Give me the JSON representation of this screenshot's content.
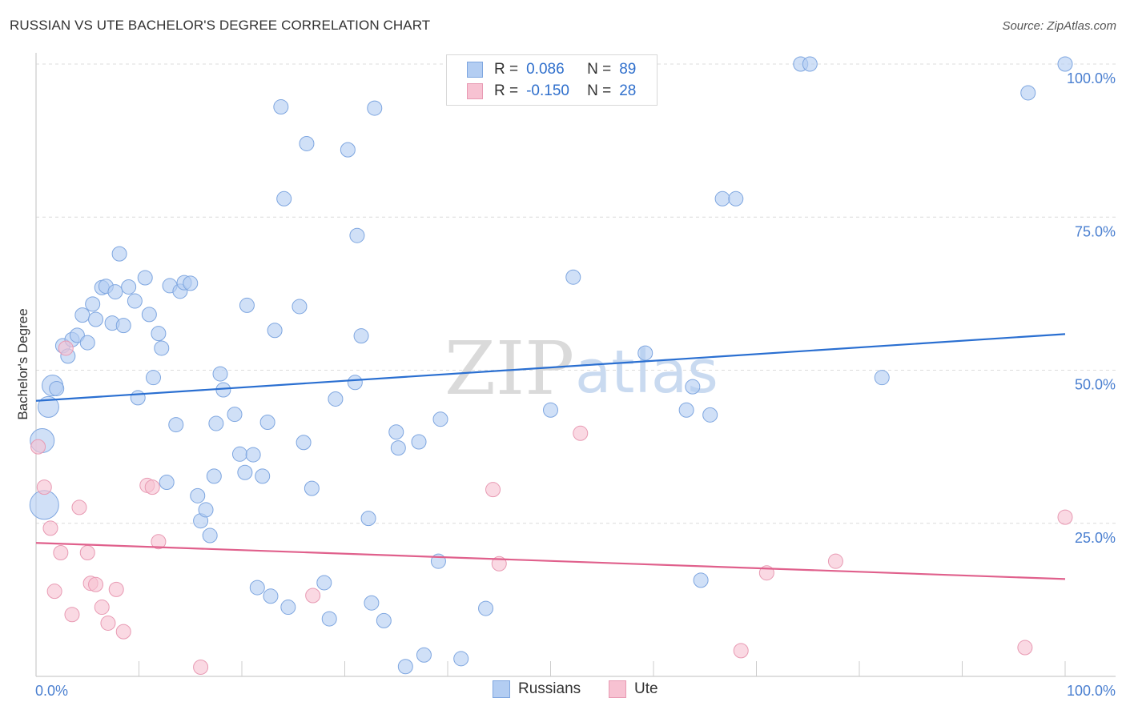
{
  "header": {
    "title": "RUSSIAN VS UTE BACHELOR'S DEGREE CORRELATION CHART",
    "source": "Source: ZipAtlas.com"
  },
  "stats": [
    {
      "r_label": "R =",
      "r_value": "0.086",
      "n_label": "N =",
      "n_value": "89",
      "color": "#b3cdf2",
      "stroke": "#7ea6e0"
    },
    {
      "r_label": "R =",
      "r_value": "-0.150",
      "n_label": "N =",
      "n_value": "28",
      "color": "#f7c2d2",
      "stroke": "#e89ab3"
    }
  ],
  "legend": [
    {
      "label": "Russians",
      "color": "#b3cdf2",
      "stroke": "#7ea6e0"
    },
    {
      "label": "Ute",
      "color": "#f7c2d2",
      "stroke": "#e89ab3"
    }
  ],
  "watermark": {
    "zip": "ZIP",
    "atlas": "atlas"
  },
  "chart_data": {
    "type": "scatter",
    "title": "RUSSIAN VS UTE BACHELOR'S DEGREE CORRELATION CHART",
    "xlabel": "",
    "ylabel": "Bachelor's Degree",
    "xlim": [
      0,
      100
    ],
    "ylim": [
      0,
      100
    ],
    "x_tick_labels": [
      "0.0%",
      "100.0%"
    ],
    "y_tick_labels": [
      "25.0%",
      "50.0%",
      "75.0%",
      "100.0%"
    ],
    "y_tick_values": [
      25,
      50,
      75,
      100
    ],
    "grid": "horizontal dashed",
    "legend_position": "bottom-center",
    "series": [
      {
        "name": "Russians",
        "color": "#7ea6e0",
        "fill": "#b3cdf2",
        "trend": {
          "x": [
            0,
            100
          ],
          "y": [
            45.0,
            55.9
          ],
          "color": "#2a6fd1"
        },
        "points": [
          {
            "x": 0.6,
            "y": 38.5,
            "s": 3
          },
          {
            "x": 0.8,
            "y": 28.0,
            "s": 4
          },
          {
            "x": 1.2,
            "y": 44.0,
            "s": 2
          },
          {
            "x": 1.6,
            "y": 47.5,
            "s": 2
          },
          {
            "x": 2.0,
            "y": 47.0,
            "s": 1
          },
          {
            "x": 2.6,
            "y": 54.0,
            "s": 1
          },
          {
            "x": 3.1,
            "y": 52.3,
            "s": 1
          },
          {
            "x": 3.5,
            "y": 55.0,
            "s": 1
          },
          {
            "x": 4.0,
            "y": 55.7,
            "s": 1
          },
          {
            "x": 4.5,
            "y": 59.0,
            "s": 1
          },
          {
            "x": 5.0,
            "y": 54.5,
            "s": 1
          },
          {
            "x": 5.5,
            "y": 60.8,
            "s": 1
          },
          {
            "x": 5.8,
            "y": 58.3,
            "s": 1
          },
          {
            "x": 6.4,
            "y": 63.5,
            "s": 1
          },
          {
            "x": 6.8,
            "y": 63.7,
            "s": 1
          },
          {
            "x": 7.4,
            "y": 57.7,
            "s": 1
          },
          {
            "x": 7.7,
            "y": 62.8,
            "s": 1
          },
          {
            "x": 8.1,
            "y": 69.0,
            "s": 1
          },
          {
            "x": 8.5,
            "y": 57.3,
            "s": 1
          },
          {
            "x": 9.0,
            "y": 63.6,
            "s": 1
          },
          {
            "x": 9.6,
            "y": 61.3,
            "s": 1
          },
          {
            "x": 9.9,
            "y": 45.5,
            "s": 1
          },
          {
            "x": 10.6,
            "y": 65.1,
            "s": 1
          },
          {
            "x": 11.0,
            "y": 59.1,
            "s": 1
          },
          {
            "x": 11.4,
            "y": 48.8,
            "s": 1
          },
          {
            "x": 11.9,
            "y": 56.0,
            "s": 1
          },
          {
            "x": 12.2,
            "y": 53.6,
            "s": 1
          },
          {
            "x": 12.7,
            "y": 31.7,
            "s": 1
          },
          {
            "x": 13.0,
            "y": 63.8,
            "s": 1
          },
          {
            "x": 13.6,
            "y": 41.1,
            "s": 1
          },
          {
            "x": 14.0,
            "y": 62.9,
            "s": 1
          },
          {
            "x": 14.4,
            "y": 64.3,
            "s": 1
          },
          {
            "x": 15.0,
            "y": 64.2,
            "s": 1
          },
          {
            "x": 15.7,
            "y": 29.5,
            "s": 1
          },
          {
            "x": 16.0,
            "y": 25.4,
            "s": 1
          },
          {
            "x": 16.5,
            "y": 27.2,
            "s": 1
          },
          {
            "x": 16.9,
            "y": 23.0,
            "s": 1
          },
          {
            "x": 17.3,
            "y": 32.7,
            "s": 1
          },
          {
            "x": 17.5,
            "y": 41.3,
            "s": 1
          },
          {
            "x": 17.9,
            "y": 49.4,
            "s": 1
          },
          {
            "x": 18.2,
            "y": 46.8,
            "s": 1
          },
          {
            "x": 19.3,
            "y": 42.8,
            "s": 1
          },
          {
            "x": 19.8,
            "y": 36.3,
            "s": 1
          },
          {
            "x": 20.3,
            "y": 33.3,
            "s": 1
          },
          {
            "x": 20.5,
            "y": 60.6,
            "s": 1
          },
          {
            "x": 21.1,
            "y": 36.2,
            "s": 1
          },
          {
            "x": 21.5,
            "y": 14.5,
            "s": 1
          },
          {
            "x": 22.0,
            "y": 32.7,
            "s": 1
          },
          {
            "x": 22.5,
            "y": 41.5,
            "s": 1
          },
          {
            "x": 22.8,
            "y": 13.1,
            "s": 1
          },
          {
            "x": 23.2,
            "y": 56.5,
            "s": 1
          },
          {
            "x": 23.8,
            "y": 93.0,
            "s": 1
          },
          {
            "x": 24.1,
            "y": 78.0,
            "s": 1
          },
          {
            "x": 24.5,
            "y": 11.3,
            "s": 1
          },
          {
            "x": 25.6,
            "y": 60.4,
            "s": 1
          },
          {
            "x": 26.0,
            "y": 38.2,
            "s": 1
          },
          {
            "x": 26.3,
            "y": 87.0,
            "s": 1
          },
          {
            "x": 26.8,
            "y": 30.7,
            "s": 1
          },
          {
            "x": 28.0,
            "y": 15.3,
            "s": 1
          },
          {
            "x": 28.5,
            "y": 9.4,
            "s": 1
          },
          {
            "x": 29.1,
            "y": 45.3,
            "s": 1
          },
          {
            "x": 30.3,
            "y": 86.0,
            "s": 1
          },
          {
            "x": 31.0,
            "y": 48.0,
            "s": 1
          },
          {
            "x": 31.2,
            "y": 72.0,
            "s": 1
          },
          {
            "x": 31.6,
            "y": 55.6,
            "s": 1
          },
          {
            "x": 32.3,
            "y": 25.8,
            "s": 1
          },
          {
            "x": 32.6,
            "y": 12.0,
            "s": 1
          },
          {
            "x": 32.9,
            "y": 92.8,
            "s": 1
          },
          {
            "x": 33.8,
            "y": 9.1,
            "s": 1
          },
          {
            "x": 35.0,
            "y": 39.9,
            "s": 1
          },
          {
            "x": 35.2,
            "y": 37.3,
            "s": 1
          },
          {
            "x": 35.9,
            "y": 1.6,
            "s": 1
          },
          {
            "x": 37.2,
            "y": 38.3,
            "s": 1
          },
          {
            "x": 37.7,
            "y": 3.5,
            "s": 1
          },
          {
            "x": 39.1,
            "y": 18.8,
            "s": 1
          },
          {
            "x": 39.3,
            "y": 42.0,
            "s": 1
          },
          {
            "x": 41.3,
            "y": 2.9,
            "s": 1
          },
          {
            "x": 43.7,
            "y": 11.1,
            "s": 1
          },
          {
            "x": 50.0,
            "y": 43.5,
            "s": 1
          },
          {
            "x": 52.2,
            "y": 65.2,
            "s": 1
          },
          {
            "x": 59.2,
            "y": 52.8,
            "s": 1
          },
          {
            "x": 63.2,
            "y": 43.5,
            "s": 1
          },
          {
            "x": 63.8,
            "y": 47.3,
            "s": 1
          },
          {
            "x": 64.6,
            "y": 15.7,
            "s": 1
          },
          {
            "x": 65.5,
            "y": 42.7,
            "s": 1
          },
          {
            "x": 66.7,
            "y": 78.0,
            "s": 1
          },
          {
            "x": 68.0,
            "y": 78.0,
            "s": 1
          },
          {
            "x": 74.3,
            "y": 100.0,
            "s": 1
          },
          {
            "x": 75.2,
            "y": 100.0,
            "s": 1
          },
          {
            "x": 82.2,
            "y": 48.8,
            "s": 1
          },
          {
            "x": 96.4,
            "y": 95.3,
            "s": 1
          },
          {
            "x": 100.0,
            "y": 100.0,
            "s": 1
          }
        ]
      },
      {
        "name": "Ute",
        "color": "#e89ab3",
        "fill": "#f7c2d2",
        "trend": {
          "x": [
            0,
            100
          ],
          "y": [
            21.8,
            15.9
          ],
          "color": "#e0608c"
        },
        "points": [
          {
            "x": 0.2,
            "y": 37.5,
            "s": 1
          },
          {
            "x": 0.8,
            "y": 30.9,
            "s": 1
          },
          {
            "x": 1.4,
            "y": 24.2,
            "s": 1
          },
          {
            "x": 1.8,
            "y": 13.9,
            "s": 1
          },
          {
            "x": 2.4,
            "y": 20.2,
            "s": 1
          },
          {
            "x": 2.9,
            "y": 53.6,
            "s": 1
          },
          {
            "x": 3.5,
            "y": 10.1,
            "s": 1
          },
          {
            "x": 4.2,
            "y": 27.6,
            "s": 1
          },
          {
            "x": 5.0,
            "y": 20.2,
            "s": 1
          },
          {
            "x": 5.3,
            "y": 15.2,
            "s": 1
          },
          {
            "x": 5.8,
            "y": 15.0,
            "s": 1
          },
          {
            "x": 6.4,
            "y": 11.3,
            "s": 1
          },
          {
            "x": 7.0,
            "y": 8.7,
            "s": 1
          },
          {
            "x": 7.8,
            "y": 14.2,
            "s": 1
          },
          {
            "x": 8.5,
            "y": 7.3,
            "s": 1
          },
          {
            "x": 10.8,
            "y": 31.2,
            "s": 1
          },
          {
            "x": 11.3,
            "y": 30.9,
            "s": 1
          },
          {
            "x": 11.9,
            "y": 22.0,
            "s": 1
          },
          {
            "x": 16.0,
            "y": 1.5,
            "s": 1
          },
          {
            "x": 26.9,
            "y": 13.2,
            "s": 1
          },
          {
            "x": 44.4,
            "y": 30.5,
            "s": 1
          },
          {
            "x": 45.0,
            "y": 18.4,
            "s": 1
          },
          {
            "x": 52.9,
            "y": 39.7,
            "s": 1
          },
          {
            "x": 68.5,
            "y": 4.2,
            "s": 1
          },
          {
            "x": 71.0,
            "y": 16.9,
            "s": 1
          },
          {
            "x": 77.7,
            "y": 18.8,
            "s": 1
          },
          {
            "x": 96.1,
            "y": 4.7,
            "s": 1
          },
          {
            "x": 100.0,
            "y": 26.0,
            "s": 1
          }
        ]
      }
    ]
  }
}
